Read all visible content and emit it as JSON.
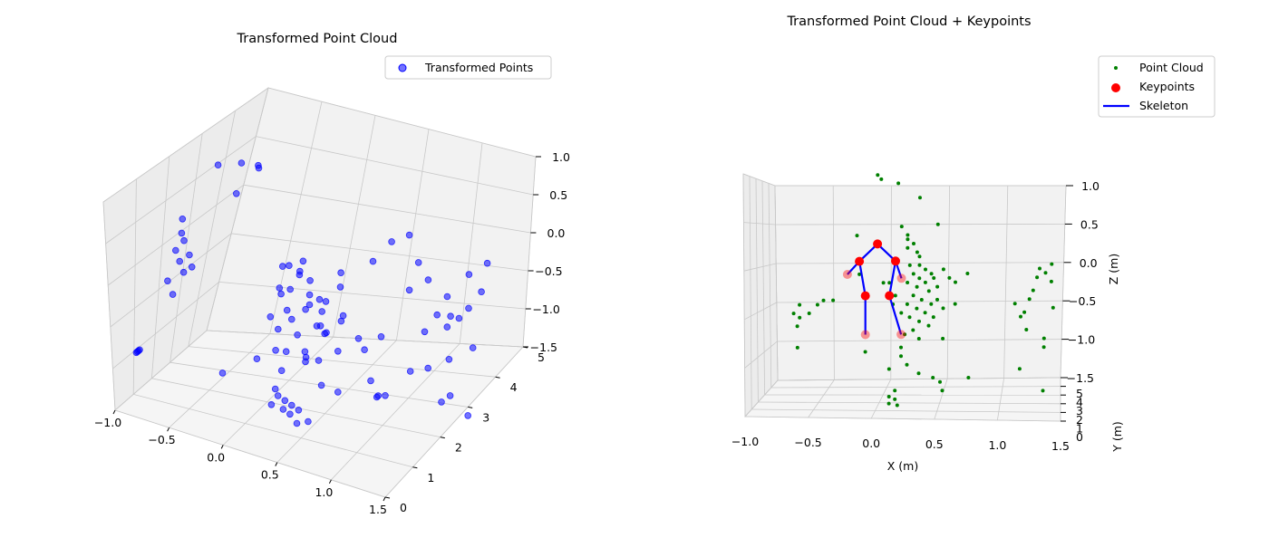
{
  "chart_data": [
    {
      "type": "scatter",
      "projection": "3d",
      "title": "Transformed Point Cloud",
      "legend_position": "top-right",
      "grid": true,
      "xlim": [
        -1.0,
        1.5
      ],
      "ylim": [
        0,
        5
      ],
      "zlim": [
        -1.5,
        1.0
      ],
      "x_ticks": [
        "−1.0",
        "−0.5",
        "0.0",
        "0.5",
        "1.0",
        "1.5"
      ],
      "y_ticks": [
        "0",
        "1",
        "2",
        "3",
        "4",
        "5"
      ],
      "z_ticks": [
        "−1.5",
        "−1.0",
        "−0.5",
        "0.0",
        "0.5",
        "1.0"
      ],
      "series": [
        {
          "name": "Transformed Points",
          "color": "#0000ff",
          "marker": "circle",
          "points": [
            [
              -0.6,
              2.2,
              0.95
            ],
            [
              -0.5,
              2.6,
              0.9
            ],
            [
              -0.4,
              2.8,
              0.85
            ],
            [
              -0.3,
              1.8,
              0.8
            ],
            [
              -0.5,
              3.2,
              0.7
            ],
            [
              -0.65,
              1.3,
              0.55
            ],
            [
              -0.6,
              1.1,
              0.45
            ],
            [
              -0.55,
              1.0,
              0.4
            ],
            [
              -0.6,
              0.9,
              0.3
            ],
            [
              -0.55,
              0.85,
              0.2
            ],
            [
              -0.5,
              0.8,
              0.1
            ],
            [
              -0.5,
              1.0,
              0.25
            ],
            [
              -0.45,
              0.9,
              0.15
            ],
            [
              -0.7,
              1.0,
              -0.1
            ],
            [
              -0.7,
              1.2,
              -0.3
            ],
            [
              -0.9,
              0.6,
              -0.9
            ],
            [
              -0.9,
              0.65,
              -0.9
            ],
            [
              -0.9,
              0.7,
              -0.9
            ],
            [
              -0.9,
              0.75,
              -0.9
            ],
            [
              0.1,
              2.2,
              0.0
            ],
            [
              0.15,
              2.4,
              -0.1
            ],
            [
              0.2,
              2.3,
              0.05
            ],
            [
              0.1,
              2.6,
              -0.2
            ],
            [
              0.15,
              2.8,
              -0.3
            ],
            [
              0.05,
              2.5,
              -0.35
            ],
            [
              0.2,
              2.6,
              -0.4
            ],
            [
              0.25,
              2.4,
              -0.45
            ],
            [
              0.1,
              2.2,
              -0.5
            ],
            [
              0.0,
              2.0,
              -0.55
            ],
            [
              0.3,
              2.8,
              -0.5
            ],
            [
              0.2,
              3.0,
              -0.55
            ],
            [
              0.15,
              2.7,
              -0.6
            ],
            [
              0.1,
              2.4,
              -0.65
            ],
            [
              0.3,
              2.5,
              -0.7
            ],
            [
              0.2,
              2.2,
              -0.75
            ],
            [
              0.25,
              2.9,
              -0.65
            ],
            [
              0.35,
              2.6,
              -0.8
            ],
            [
              0.05,
              2.1,
              -0.7
            ],
            [
              0.4,
              3.0,
              -0.75
            ],
            [
              0.15,
              2.0,
              -0.9
            ],
            [
              0.25,
              2.3,
              -0.95
            ],
            [
              0.3,
              2.1,
              -1.0
            ],
            [
              0.1,
              1.8,
              -0.85
            ],
            [
              0.35,
              2.4,
              -1.05
            ],
            [
              0.2,
              2.6,
              -1.1
            ],
            [
              0.45,
              2.7,
              -1.0
            ],
            [
              0.0,
              2.3,
              -0.3
            ],
            [
              -0.05,
              2.6,
              -0.45
            ],
            [
              0.4,
              2.2,
              -0.6
            ],
            [
              0.5,
              2.0,
              -0.6
            ],
            [
              0.55,
              2.4,
              -0.5
            ],
            [
              -0.1,
              2.8,
              -0.2
            ],
            [
              0.35,
              3.1,
              -0.4
            ],
            [
              0.3,
              3.3,
              -0.3
            ],
            [
              0.5,
              3.6,
              -0.2
            ],
            [
              0.6,
              3.8,
              0.0
            ],
            [
              0.7,
              4.0,
              0.05
            ],
            [
              0.8,
              4.0,
              -0.25
            ],
            [
              0.85,
              4.2,
              -0.5
            ],
            [
              1.2,
              4.8,
              -0.4
            ],
            [
              1.1,
              4.6,
              -0.5
            ],
            [
              1.0,
              4.3,
              -0.7
            ],
            [
              0.95,
              4.2,
              -0.9
            ],
            [
              1.0,
              4.5,
              -1.0
            ],
            [
              1.05,
              4.6,
              -1.05
            ],
            [
              1.1,
              4.7,
              -0.95
            ],
            [
              1.0,
              4.4,
              -1.1
            ],
            [
              1.15,
              4.9,
              -0.8
            ],
            [
              0.9,
              4.0,
              -1.05
            ],
            [
              0.7,
              4.2,
              -0.65
            ],
            [
              0.6,
              2.8,
              -0.85
            ],
            [
              0.3,
              1.0,
              -1.1
            ],
            [
              0.35,
              1.05,
              -1.15
            ],
            [
              0.4,
              1.1,
              -1.2
            ],
            [
              0.45,
              1.15,
              -1.25
            ],
            [
              0.3,
              1.2,
              -1.3
            ],
            [
              0.35,
              1.25,
              -1.35
            ],
            [
              0.25,
              0.95,
              -1.2
            ],
            [
              0.4,
              1.3,
              -1.45
            ],
            [
              0.3,
              0.9,
              -1.0
            ],
            [
              0.95,
              2.0,
              -1.2
            ],
            [
              0.95,
              2.05,
              -1.2
            ],
            [
              1.0,
              2.1,
              -1.2
            ],
            [
              1.1,
              2.6,
              -1.05
            ],
            [
              0.7,
              1.6,
              -1.1
            ],
            [
              0.6,
              1.4,
              -1.0
            ],
            [
              0.85,
              2.2,
              -1.1
            ],
            [
              0.5,
              1.3,
              -1.4
            ],
            [
              1.05,
              3.5,
              -1.3
            ],
            [
              1.2,
              3.6,
              -1.2
            ],
            [
              1.3,
              2.9,
              -1.45
            ],
            [
              1.35,
              3.0,
              -1.4
            ],
            [
              1.35,
              3.8,
              -1.1
            ],
            [
              1.5,
              3.0,
              -1.6
            ],
            [
              0.0,
              1.5,
              -0.9
            ],
            [
              -0.2,
              1.0,
              -1.0
            ],
            [
              0.2,
              1.6,
              -1.0
            ],
            [
              0.7,
              2.6,
              -0.9
            ],
            [
              0.75,
              3.0,
              -0.85
            ]
          ]
        }
      ]
    },
    {
      "type": "scatter",
      "projection": "3d",
      "title": "Transformed Point Cloud + Keypoints",
      "xlabel": "X (m)",
      "ylabel": "Y (m)",
      "zlabel": "Z (m)",
      "legend_position": "top-right",
      "grid": true,
      "xlim": [
        -1.0,
        1.5
      ],
      "ylim": [
        0,
        5
      ],
      "zlim": [
        -1.5,
        1.0
      ],
      "x_ticks": [
        "−1.0",
        "−0.5",
        "0.0",
        "0.5",
        "1.0",
        "1.5"
      ],
      "y_ticks": [
        "0",
        "1",
        "2",
        "3",
        "4",
        "5"
      ],
      "z_ticks": [
        "−1.5",
        "−1.0",
        "−0.5",
        "0.0",
        "0.5",
        "1.0"
      ],
      "series": [
        {
          "name": "Point Cloud",
          "color": "#008000",
          "marker": "point",
          "points": [
            [
              -0.05,
              3,
              1.05
            ],
            [
              -0.02,
              3,
              1.0
            ],
            [
              0.12,
              3,
              0.95
            ],
            [
              0.3,
              3,
              0.78
            ],
            [
              0.15,
              3,
              0.45
            ],
            [
              -0.22,
              3,
              0.35
            ],
            [
              0.2,
              3,
              0.35
            ],
            [
              0.2,
              3,
              0.3
            ],
            [
              0.25,
              3,
              0.25
            ],
            [
              0.2,
              3,
              0.2
            ],
            [
              0.45,
              3,
              0.47
            ],
            [
              0.28,
              3,
              0.15
            ],
            [
              0.3,
              3,
              0.1
            ],
            [
              0.22,
              3,
              0.0
            ],
            [
              0.3,
              3,
              0.0
            ],
            [
              0.35,
              3,
              -0.05
            ],
            [
              0.4,
              3,
              -0.1
            ],
            [
              0.25,
              3,
              -0.1
            ],
            [
              0.3,
              3,
              -0.15
            ],
            [
              0.35,
              3,
              -0.2
            ],
            [
              0.2,
              3,
              -0.2
            ],
            [
              0.28,
              3,
              -0.25
            ],
            [
              0.38,
              3,
              -0.3
            ],
            [
              0.45,
              3,
              -0.25
            ],
            [
              0.42,
              3,
              -0.15
            ],
            [
              0.5,
              3,
              -0.05
            ],
            [
              0.55,
              3,
              -0.15
            ],
            [
              0.25,
              3,
              -0.35
            ],
            [
              0.32,
              3,
              -0.4
            ],
            [
              0.4,
              3,
              -0.45
            ],
            [
              0.2,
              3,
              -0.45
            ],
            [
              0.28,
              3,
              -0.5
            ],
            [
              0.35,
              3,
              -0.55
            ],
            [
              0.45,
              3,
              -0.4
            ],
            [
              0.5,
              3,
              -0.5
            ],
            [
              0.42,
              3,
              -0.6
            ],
            [
              0.3,
              3,
              -0.65
            ],
            [
              0.22,
              3,
              -0.6
            ],
            [
              0.15,
              3,
              -0.55
            ],
            [
              0.1,
              3,
              -0.35
            ],
            [
              0.05,
              3,
              -0.2
            ],
            [
              0.08,
              3,
              -0.45
            ],
            [
              0.38,
              3,
              -0.7
            ],
            [
              0.25,
              3,
              -0.75
            ],
            [
              0.18,
              3,
              -0.8
            ],
            [
              0.3,
              3,
              -0.85
            ],
            [
              0.5,
              3,
              -0.85
            ],
            [
              0.6,
              3,
              -0.2
            ],
            [
              0.6,
              3,
              -0.45
            ],
            [
              0.7,
              3,
              -0.1
            ],
            [
              0.15,
              3,
              -1.05
            ],
            [
              0.2,
              3,
              -1.15
            ],
            [
              0.3,
              3,
              -1.25
            ],
            [
              0.42,
              3,
              -1.3
            ],
            [
              0.48,
              3,
              -1.35
            ],
            [
              0.5,
              3,
              -1.45
            ],
            [
              0.72,
              3,
              -1.3
            ],
            [
              0.05,
              3,
              -1.2
            ],
            [
              0.1,
              3,
              -1.45
            ],
            [
              0.05,
              3,
              -1.52
            ],
            [
              0.1,
              3,
              -1.55
            ],
            [
              0.05,
              3,
              -1.6
            ],
            [
              0.12,
              3,
              -1.62
            ],
            [
              -0.15,
              3,
              -1.0
            ],
            [
              0.15,
              3,
              -0.95
            ],
            [
              -0.7,
              3,
              -0.45
            ],
            [
              -0.75,
              3,
              -0.55
            ],
            [
              -0.7,
              3,
              -0.6
            ],
            [
              -0.72,
              3,
              -0.7
            ],
            [
              -0.62,
              3,
              -0.55
            ],
            [
              -0.55,
              3,
              -0.45
            ],
            [
              -0.5,
              3,
              -0.4
            ],
            [
              -0.42,
              3,
              -0.4
            ],
            [
              -0.72,
              3,
              -0.95
            ],
            [
              1.3,
              3,
              -0.05
            ],
            [
              1.28,
              3,
              -0.15
            ],
            [
              1.25,
              3,
              -0.3
            ],
            [
              1.22,
              3,
              -0.4
            ],
            [
              1.18,
              3,
              -0.55
            ],
            [
              1.35,
              3,
              -0.1
            ],
            [
              1.4,
              3,
              0.0
            ],
            [
              1.4,
              3,
              -0.2
            ],
            [
              1.1,
              3,
              -0.45
            ],
            [
              1.15,
              3,
              -0.6
            ],
            [
              1.2,
              3,
              -0.75
            ],
            [
              1.35,
              3,
              -0.85
            ],
            [
              1.35,
              3,
              -0.95
            ],
            [
              1.15,
              3,
              -1.2
            ],
            [
              1.35,
              3,
              -1.45
            ],
            [
              1.42,
              3,
              -0.5
            ],
            [
              -0.2,
              3,
              -0.1
            ],
            [
              0.0,
              3,
              -0.2
            ]
          ]
        },
        {
          "name": "Keypoints",
          "color": "#ff0000",
          "marker": "circle",
          "points": [
            [
              -0.05,
              3,
              0.25
            ],
            [
              -0.2,
              3,
              0.05
            ],
            [
              0.1,
              3,
              0.05
            ],
            [
              -0.15,
              3,
              -0.35
            ],
            [
              0.05,
              3,
              -0.35
            ],
            [
              -0.3,
              3,
              -0.1
            ],
            [
              0.15,
              3,
              -0.15
            ],
            [
              -0.15,
              3,
              -0.8
            ],
            [
              0.15,
              3,
              -0.8
            ]
          ],
          "faded": [
            false,
            false,
            false,
            false,
            false,
            true,
            true,
            true,
            true
          ]
        },
        {
          "name": "Skeleton",
          "color": "#0000ff",
          "marker": "line",
          "edges": [
            [
              0,
              1
            ],
            [
              0,
              2
            ],
            [
              1,
              3
            ],
            [
              2,
              4
            ],
            [
              1,
              5
            ],
            [
              2,
              6
            ],
            [
              3,
              7
            ],
            [
              4,
              8
            ]
          ]
        }
      ]
    }
  ]
}
